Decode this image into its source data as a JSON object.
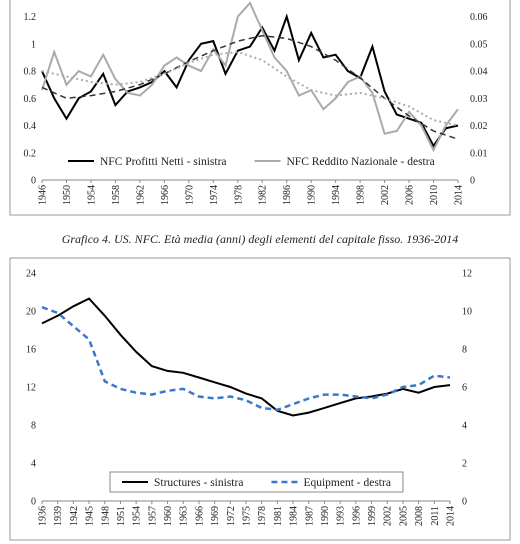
{
  "chart_data": [
    {
      "type": "line",
      "x": [
        1946,
        1948,
        1950,
        1952,
        1954,
        1956,
        1958,
        1960,
        1962,
        1964,
        1966,
        1968,
        1970,
        1972,
        1974,
        1976,
        1978,
        1980,
        1982,
        1984,
        1986,
        1988,
        1990,
        1992,
        1994,
        1996,
        1998,
        2000,
        2002,
        2004,
        2006,
        2008,
        2010,
        2012,
        2014
      ],
      "xlim": [
        1946,
        2014
      ],
      "xticks": [
        1946,
        1950,
        1954,
        1958,
        1962,
        1966,
        1970,
        1974,
        1978,
        1982,
        1986,
        1990,
        1994,
        1998,
        2002,
        2006,
        2010,
        2014
      ],
      "ylim": [
        0,
        1.3
      ],
      "yticks": [
        0,
        0.2,
        0.4,
        0.6,
        0.8,
        1,
        1.2
      ],
      "y2lim": [
        0,
        0.065
      ],
      "y2ticks": [
        0,
        0.01,
        0.02,
        0.03,
        0.04,
        0.05,
        0.06
      ],
      "legend": "bottom",
      "series": [
        {
          "name": "NFC Profitti Netti - sinistra",
          "color": "#000000",
          "dash": "solid",
          "width": 2,
          "values": [
            0.8,
            0.6,
            0.45,
            0.6,
            0.65,
            0.78,
            0.55,
            0.65,
            0.68,
            0.72,
            0.8,
            0.68,
            0.88,
            1.0,
            1.02,
            0.78,
            0.95,
            0.98,
            1.12,
            0.95,
            1.2,
            0.88,
            1.08,
            0.9,
            0.92,
            0.8,
            0.75,
            0.98,
            0.65,
            0.48,
            0.45,
            0.42,
            0.25,
            0.38,
            0.4
          ]
        },
        {
          "name": "NFC Reddito Nazionale - destra",
          "color": "#aaaaaa",
          "dash": "solid",
          "width": 2,
          "axis": "y2",
          "values": [
            0.033,
            0.047,
            0.035,
            0.04,
            0.038,
            0.046,
            0.037,
            0.032,
            0.031,
            0.035,
            0.042,
            0.045,
            0.042,
            0.04,
            0.048,
            0.042,
            0.06,
            0.065,
            0.055,
            0.045,
            0.04,
            0.031,
            0.033,
            0.026,
            0.03,
            0.036,
            0.038,
            0.032,
            0.017,
            0.018,
            0.025,
            0.02,
            0.011,
            0.02,
            0.026
          ]
        },
        {
          "color": "#333333",
          "dash": "dashed",
          "width": 1.5,
          "x": [
            1946,
            1950,
            1954,
            1958,
            1962,
            1966,
            1970,
            1974,
            1978,
            1982,
            1986,
            1990,
            1994,
            1998,
            2002,
            2006,
            2010,
            2014
          ],
          "values": [
            0.68,
            0.6,
            0.62,
            0.65,
            0.7,
            0.78,
            0.87,
            0.95,
            1.02,
            1.06,
            1.04,
            0.98,
            0.88,
            0.75,
            0.6,
            0.47,
            0.36,
            0.3
          ]
        },
        {
          "color": "#aaaaaa",
          "dash": "dotted",
          "width": 2,
          "axis": "y2",
          "x": [
            1946,
            1950,
            1954,
            1958,
            1962,
            1966,
            1970,
            1974,
            1978,
            1982,
            1986,
            1990,
            1994,
            1998,
            2002,
            2006,
            2010,
            2014
          ],
          "values": [
            0.04,
            0.038,
            0.036,
            0.035,
            0.036,
            0.039,
            0.043,
            0.046,
            0.047,
            0.044,
            0.038,
            0.033,
            0.031,
            0.032,
            0.03,
            0.027,
            0.022,
            0.02
          ]
        }
      ]
    },
    {
      "type": "line",
      "title": "Grafico 4. US. NFC. Età media (anni) degli elementi del capitale fisso. 1936-2014",
      "x": [
        1936,
        1939,
        1942,
        1945,
        1948,
        1951,
        1954,
        1957,
        1960,
        1963,
        1966,
        1969,
        1972,
        1975,
        1978,
        1981,
        1984,
        1987,
        1990,
        1993,
        1996,
        1999,
        2002,
        2005,
        2008,
        2011,
        2014
      ],
      "xlim": [
        1936,
        2014
      ],
      "xticks": [
        1936,
        1939,
        1942,
        1945,
        1948,
        1951,
        1954,
        1957,
        1960,
        1963,
        1966,
        1969,
        1972,
        1975,
        1978,
        1981,
        1984,
        1987,
        1990,
        1993,
        1996,
        1999,
        2002,
        2005,
        2008,
        2011,
        2014
      ],
      "ylim": [
        0,
        24
      ],
      "yticks": [
        0,
        4,
        8,
        12,
        16,
        20,
        24
      ],
      "y2lim": [
        0,
        12
      ],
      "y2ticks": [
        0,
        2,
        4,
        6,
        8,
        10,
        12
      ],
      "legend": "bottom",
      "series": [
        {
          "name": "Structures - sinistra",
          "color": "#000000",
          "dash": "solid",
          "width": 2,
          "values": [
            18.7,
            19.5,
            20.5,
            21.3,
            19.5,
            17.5,
            15.7,
            14.2,
            13.7,
            13.5,
            13.0,
            12.5,
            12.0,
            11.3,
            10.8,
            9.5,
            9.0,
            9.3,
            9.8,
            10.3,
            10.8,
            11.0,
            11.3,
            11.8,
            11.4,
            12.0,
            12.2
          ]
        },
        {
          "name": "Equipment - destra",
          "color": "#3a78c9",
          "dash": "dashed",
          "width": 2.5,
          "axis": "y2",
          "values": [
            10.2,
            9.9,
            9.2,
            8.5,
            6.3,
            5.9,
            5.7,
            5.6,
            5.8,
            5.9,
            5.5,
            5.4,
            5.5,
            5.3,
            4.9,
            4.8,
            5.1,
            5.4,
            5.6,
            5.6,
            5.5,
            5.4,
            5.6,
            6.0,
            6.1,
            6.6,
            6.5
          ]
        }
      ]
    }
  ]
}
